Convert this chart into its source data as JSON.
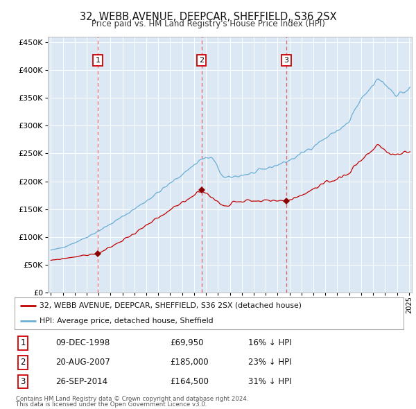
{
  "title": "32, WEBB AVENUE, DEEPCAR, SHEFFIELD, S36 2SX",
  "subtitle": "Price paid vs. HM Land Registry's House Price Index (HPI)",
  "sale_dates": [
    "1998-12-09",
    "2007-08-20",
    "2014-09-26"
  ],
  "sale_prices": [
    69950,
    185000,
    164500
  ],
  "sale_labels": [
    "1",
    "2",
    "3"
  ],
  "legend_line1": "32, WEBB AVENUE, DEEPCAR, SHEFFIELD, S36 2SX (detached house)",
  "legend_line2": "HPI: Average price, detached house, Sheffield",
  "table_rows": [
    [
      "1",
      "09-DEC-1998",
      "£69,950",
      "16% ↓ HPI"
    ],
    [
      "2",
      "20-AUG-2007",
      "£185,000",
      "23% ↓ HPI"
    ],
    [
      "3",
      "26-SEP-2014",
      "£164,500",
      "31% ↓ HPI"
    ]
  ],
  "footer1": "Contains HM Land Registry data © Crown copyright and database right 2024.",
  "footer2": "This data is licensed under the Open Government Licence v3.0.",
  "hpi_color": "#6aaed6",
  "price_color": "#c00000",
  "marker_color": "#8b0000",
  "dashed_color": "#e06060",
  "plot_bg_color": "#dce9f5",
  "ylim": [
    0,
    460000
  ],
  "yticks": [
    0,
    50000,
    100000,
    150000,
    200000,
    250000,
    300000,
    350000,
    400000,
    450000
  ],
  "xstart_year": 1995,
  "xend_year": 2025
}
